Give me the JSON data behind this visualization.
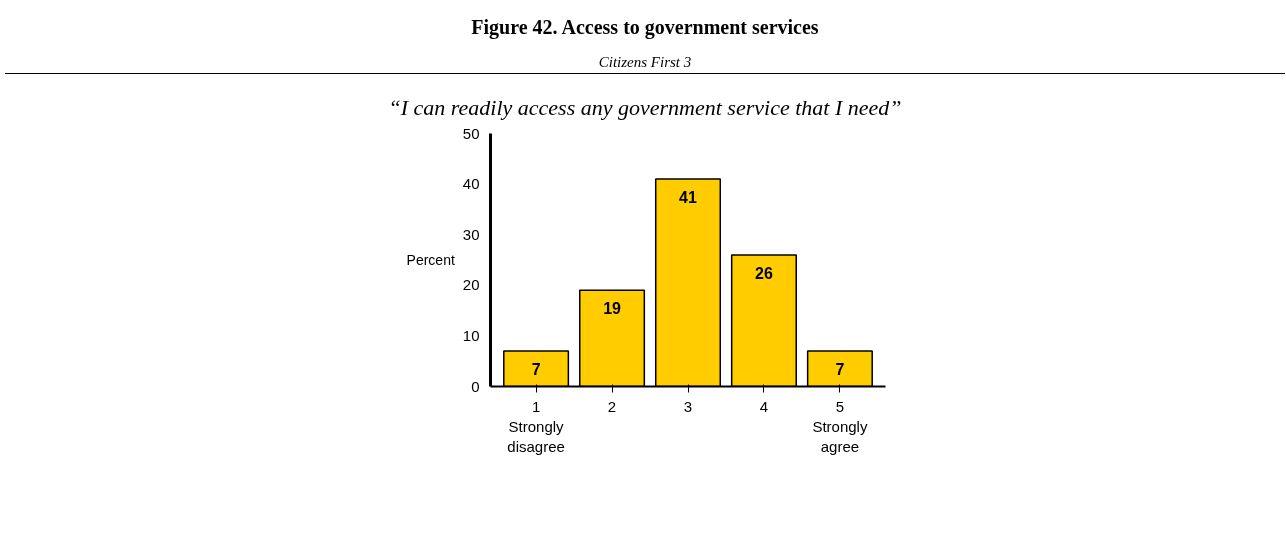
{
  "chart_data": {
    "type": "bar",
    "title": "Figure 42. Access to government services",
    "subtitle": "Citizens First 3",
    "annotations": [
      "“I can readily access any government service that I need”"
    ],
    "ylabel": "Percent",
    "categories": [
      "1\nStrongly\ndisagree",
      "2",
      "3",
      "4",
      "5\nStrongly\nagree"
    ],
    "values": [
      7,
      19,
      41,
      26,
      7
    ],
    "color": "#ffcc00",
    "ylim": [
      0,
      50
    ],
    "yticks": [
      0,
      10,
      20,
      30,
      40,
      50
    ],
    "grid": false,
    "data_labels": true
  }
}
